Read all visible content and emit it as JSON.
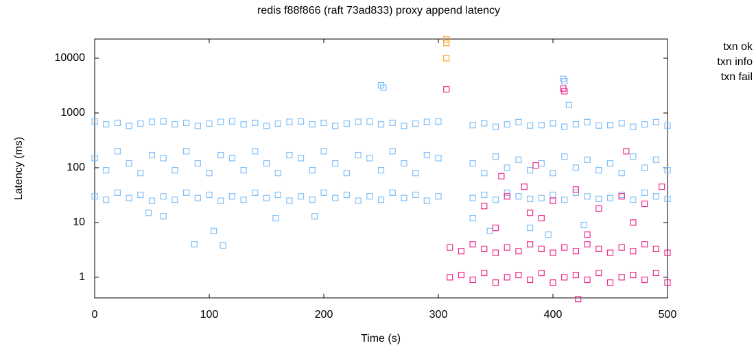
{
  "chart_data": {
    "type": "scatter",
    "title": "redis f88f866 (raft 73ad833) proxy append  latency",
    "x_label": "Time (s)",
    "y_label": "Latency (ms)",
    "xlim": [
      0,
      500
    ],
    "xticks": [
      0,
      100,
      200,
      300,
      400,
      500
    ],
    "ylim": [
      0.42,
      22400
    ],
    "yticks": [
      1,
      10,
      100,
      1000,
      10000
    ],
    "log_y": true,
    "grid": false,
    "legend": "right",
    "series": [
      {
        "name": "txn ok",
        "color": "#80bff7",
        "x": [
          0,
          0,
          0,
          10,
          10,
          10,
          20,
          20,
          20,
          30,
          30,
          30,
          40,
          40,
          40,
          50,
          50,
          50,
          60,
          60,
          60,
          70,
          70,
          70,
          80,
          80,
          80,
          90,
          90,
          90,
          100,
          100,
          100,
          110,
          110,
          110,
          120,
          120,
          120,
          130,
          130,
          130,
          140,
          140,
          140,
          150,
          150,
          150,
          160,
          160,
          160,
          170,
          170,
          170,
          180,
          180,
          180,
          190,
          190,
          190,
          200,
          200,
          200,
          210,
          210,
          210,
          220,
          220,
          220,
          230,
          230,
          230,
          240,
          240,
          240,
          250,
          250,
          250,
          260,
          260,
          260,
          270,
          270,
          270,
          280,
          280,
          280,
          290,
          290,
          290,
          300,
          300,
          300,
          330,
          330,
          330,
          340,
          340,
          340,
          350,
          350,
          350,
          360,
          360,
          360,
          370,
          370,
          370,
          380,
          380,
          380,
          390,
          390,
          390,
          400,
          400,
          400,
          410,
          410,
          410,
          420,
          420,
          420,
          430,
          430,
          430,
          440,
          440,
          440,
          450,
          450,
          450,
          460,
          460,
          460,
          470,
          470,
          470,
          480,
          480,
          480,
          490,
          490,
          490,
          500,
          500,
          500,
          87,
          104,
          112,
          250,
          252,
          409,
          410,
          414,
          60,
          158,
          192,
          47,
          330,
          345,
          380,
          396,
          427
        ],
        "values": [
          700,
          150,
          30,
          620,
          90,
          26,
          660,
          200,
          35,
          580,
          120,
          28,
          640,
          80,
          32,
          690,
          170,
          25,
          700,
          150,
          30,
          620,
          90,
          26,
          660,
          200,
          35,
          580,
          120,
          28,
          640,
          80,
          32,
          690,
          170,
          25,
          700,
          150,
          30,
          620,
          90,
          26,
          660,
          200,
          35,
          580,
          120,
          28,
          640,
          80,
          32,
          690,
          170,
          25,
          700,
          150,
          30,
          620,
          90,
          26,
          660,
          200,
          35,
          580,
          120,
          28,
          640,
          80,
          32,
          690,
          170,
          25,
          700,
          150,
          30,
          620,
          90,
          26,
          660,
          200,
          35,
          580,
          120,
          28,
          640,
          80,
          32,
          690,
          170,
          25,
          700,
          150,
          30,
          600,
          120,
          28,
          650,
          80,
          32,
          560,
          160,
          26,
          620,
          100,
          35,
          680,
          140,
          30,
          590,
          90,
          27,
          600,
          120,
          28,
          650,
          80,
          32,
          560,
          160,
          26,
          620,
          100,
          35,
          680,
          140,
          30,
          590,
          90,
          27,
          600,
          120,
          28,
          650,
          80,
          32,
          560,
          160,
          26,
          620,
          100,
          35,
          680,
          140,
          30,
          590,
          90,
          27,
          4,
          7,
          3.8,
          3200,
          2900,
          4200,
          3800,
          1400,
          13,
          12,
          13,
          15,
          12,
          7,
          8,
          6,
          9
        ]
      },
      {
        "name": "txn info",
        "color": "#f5a623",
        "x": [
          307,
          307,
          307
        ],
        "values": [
          22000,
          19000,
          10000
        ]
      },
      {
        "name": "txn fail",
        "color": "#f0288c",
        "x": [
          310,
          310,
          320,
          320,
          330,
          330,
          340,
          340,
          350,
          350,
          360,
          360,
          370,
          370,
          380,
          380,
          390,
          390,
          400,
          400,
          410,
          410,
          420,
          420,
          430,
          430,
          440,
          440,
          450,
          450,
          460,
          460,
          470,
          470,
          480,
          480,
          490,
          490,
          500,
          500,
          340,
          360,
          380,
          400,
          420,
          440,
          460,
          480,
          350,
          390,
          430,
          470,
          495,
          355,
          375,
          307,
          410,
          409,
          464,
          385,
          422
        ],
        "values": [
          3.5,
          1,
          3,
          1.1,
          4,
          0.9,
          3.3,
          1.2,
          2.8,
          0.8,
          3.5,
          1,
          3,
          1.1,
          4,
          0.9,
          3.3,
          1.2,
          2.8,
          0.8,
          3.5,
          1,
          3,
          1.1,
          4,
          0.9,
          3.3,
          1.2,
          2.8,
          0.8,
          3.5,
          1,
          3,
          1.1,
          4,
          0.9,
          3.3,
          1.2,
          2.8,
          0.8,
          20,
          30,
          15,
          25,
          40,
          18,
          30,
          22,
          8,
          12,
          6,
          10,
          45,
          70,
          45,
          2700,
          2500,
          2800,
          200,
          110,
          0.4
        ]
      }
    ]
  }
}
